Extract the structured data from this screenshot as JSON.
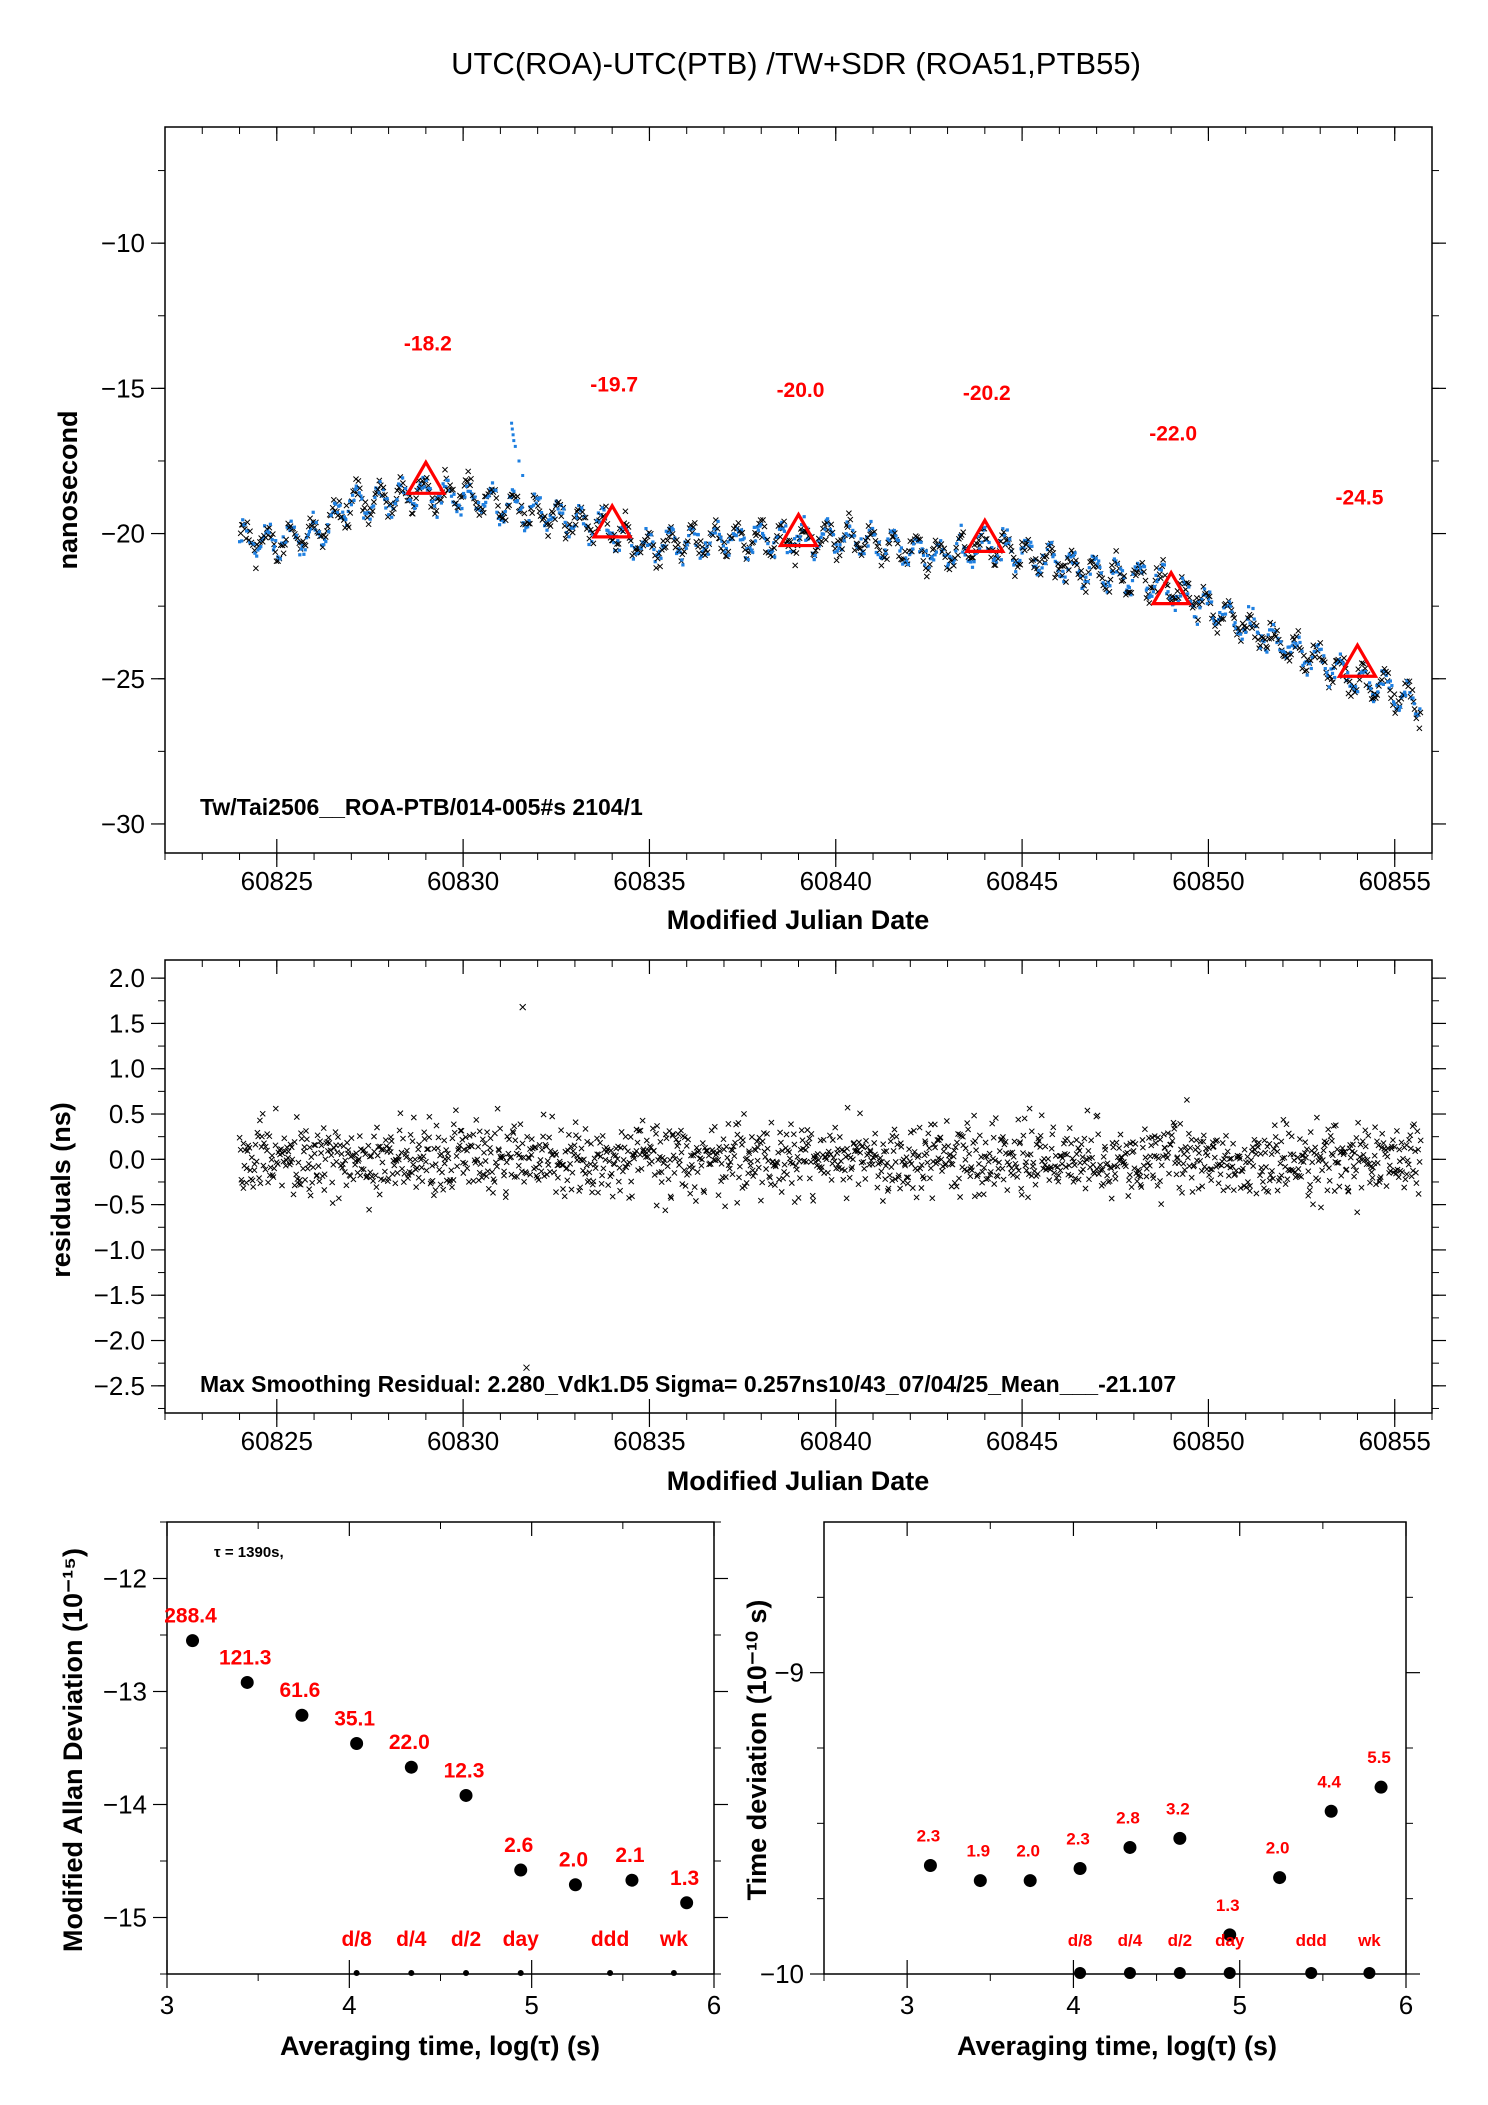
{
  "colors": {
    "accent_blue": "#1e7fe0",
    "marker_red": "#ff0000",
    "ink": "#000000"
  },
  "chart_data": [
    {
      "id": "main",
      "type": "scatter",
      "title": "UTC(ROA)-UTC(PTB)  /TW+SDR  (ROA51,PTB55)",
      "xlabel": "Modified Julian Date",
      "ylabel": "nanosecond",
      "xlim": [
        60822,
        60856
      ],
      "ylim": [
        -31,
        -6
      ],
      "xticks": [
        60825,
        60830,
        60835,
        60840,
        60845,
        60850,
        60855
      ],
      "yticks": [
        -30,
        -25,
        -20,
        -15,
        -10
      ],
      "series": [
        {
          "marker": "x-black-and-blue-dots",
          "trend_x": [
            60824.0,
            60825.0,
            60826.0,
            60827.0,
            60828.0,
            60829.0,
            60830.0,
            60831.0,
            60832.0,
            60833.0,
            60834.0,
            60835.0,
            60836.0,
            60837.0,
            60838.0,
            60839.0,
            60840.0,
            60841.0,
            60842.0,
            60843.0,
            60844.0,
            60845.0,
            60846.0,
            60847.0,
            60848.0,
            60849.0,
            60850.0,
            60851.0,
            60852.0,
            60853.0,
            60854.0,
            60855.0,
            60855.7
          ],
          "trend_y": [
            -20.2,
            -20.3,
            -20.0,
            -19.0,
            -18.8,
            -18.6,
            -18.7,
            -19.0,
            -19.3,
            -19.6,
            -19.9,
            -20.5,
            -20.3,
            -20.2,
            -20.2,
            -20.2,
            -20.1,
            -20.3,
            -20.6,
            -20.7,
            -20.4,
            -20.7,
            -21.0,
            -21.4,
            -21.5,
            -21.9,
            -22.5,
            -23.2,
            -23.8,
            -24.4,
            -25.0,
            -25.5,
            -25.9
          ],
          "outlier_x": [
            60831.3,
            60831.32,
            60831.34,
            60831.36,
            60831.4,
            60831.5,
            60831.6
          ],
          "outlier_y": [
            -16.2,
            -16.4,
            -16.6,
            -16.8,
            -17.0,
            -17.5,
            -18.0
          ]
        }
      ],
      "markers": {
        "x": [
          60829,
          60834,
          60839,
          60844,
          60849,
          60854
        ],
        "y": [
          -18.2,
          -19.7,
          -20.0,
          -20.2,
          -22.0,
          -24.5
        ],
        "labels": [
          "-18.2",
          "-19.7",
          "-20.0",
          "-20.2",
          "-22.0",
          "-24.5"
        ],
        "label_y": [
          -13.7,
          -15.1,
          -15.3,
          -15.4,
          -16.8,
          -19.0
        ]
      },
      "annotation": "Tw/Tai2506__ROA-PTB/014-005#s  2104/1"
    },
    {
      "id": "residuals",
      "type": "scatter",
      "xlabel": "Modified Julian Date",
      "ylabel": "residuals (ns)",
      "xlim": [
        60822,
        60856
      ],
      "ylim": [
        -2.8,
        2.2
      ],
      "xticks": [
        60825,
        60830,
        60835,
        60840,
        60845,
        60850,
        60855
      ],
      "yticks": [
        -2.5,
        -2.0,
        -1.5,
        -1.0,
        -0.5,
        0.0,
        0.5,
        1.0,
        1.5,
        2.0
      ],
      "ytick_labels": [
        "−2.5",
        "−2.0",
        "−1.5",
        "−1.0",
        "−0.5",
        "0.0",
        "0.5",
        "1.0",
        "1.5",
        "2.0"
      ],
      "x_range": [
        60824.0,
        60855.7
      ],
      "center": 0.0,
      "spread": 0.3,
      "outliers_x": [
        60831.6,
        60831.7
      ],
      "outliers_y": [
        1.68,
        -2.3
      ],
      "annotation": "Max Smoothing Residual: 2.280_Vdk1.D5  Sigma= 0.257ns10/43_07/04/25_Mean___-21.107"
    },
    {
      "id": "mdev",
      "type": "scatter",
      "xlabel": "Averaging time, log(τ) (s)",
      "ylabel": "Modified Allan Deviation (10⁻¹⁵)",
      "xlim": [
        3,
        6
      ],
      "ylim": [
        -15.5,
        -11.5
      ],
      "xticks": [
        3,
        4,
        5,
        6
      ],
      "yticks": [
        -15,
        -14,
        -13,
        -12
      ],
      "x": [
        3.14,
        3.44,
        3.74,
        4.04,
        4.34,
        4.64,
        4.94,
        5.24,
        5.55,
        5.85
      ],
      "y": [
        -12.55,
        -12.92,
        -13.21,
        -13.46,
        -13.67,
        -13.92,
        -14.58,
        -14.71,
        -14.67,
        -14.87
      ],
      "point_labels": [
        "288.4",
        "121.3",
        "61.6",
        "35.1",
        "22.0",
        "12.3",
        "2.6",
        "2.0",
        "2.1",
        "1.3"
      ],
      "period_x": [
        4.04,
        4.34,
        4.64,
        4.94,
        5.43,
        5.78
      ],
      "period_labels": [
        "d/8",
        "d/4",
        "d/2",
        "day",
        "ddd",
        "wk"
      ],
      "annotation": "τ = 1390s,"
    },
    {
      "id": "tdev",
      "type": "scatter",
      "xlabel": "Averaging time, log(τ) (s)",
      "ylabel": "Time deviation (10⁻¹⁰ s)",
      "xlim": [
        2.5,
        6
      ],
      "ylim": [
        -10,
        -8.5
      ],
      "xticks": [
        3,
        4,
        5,
        6
      ],
      "yticks": [
        -10,
        -9
      ],
      "x": [
        3.14,
        3.44,
        3.74,
        4.04,
        4.34,
        4.64,
        4.94,
        5.24,
        5.55,
        5.85
      ],
      "y": [
        -9.64,
        -9.69,
        -9.69,
        -9.65,
        -9.58,
        -9.55,
        -9.87,
        -9.68,
        -9.46,
        -9.38
      ],
      "point_labels": [
        "2.3",
        "1.9",
        "2.0",
        "2.3",
        "2.8",
        "3.2",
        "1.3",
        "2.0",
        "4.4",
        "5.5"
      ],
      "period_x": [
        4.04,
        4.34,
        4.64,
        4.94,
        5.43,
        5.78
      ],
      "period_labels": [
        "d/8",
        "d/4",
        "d/2",
        "day",
        "ddd",
        "wk"
      ]
    }
  ]
}
